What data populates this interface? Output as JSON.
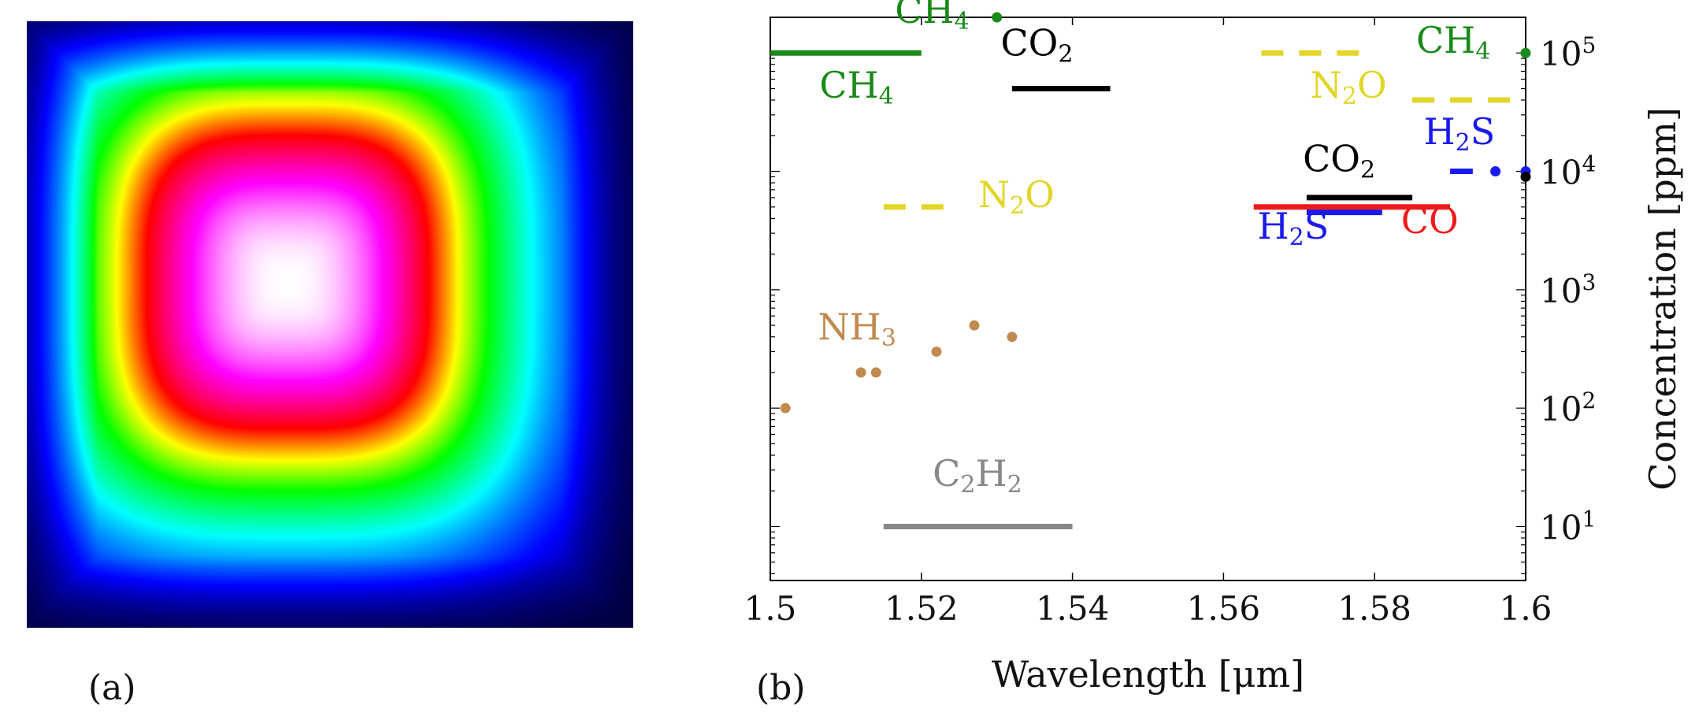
{
  "panel_a": {
    "caption": "(a)",
    "colormap": [
      "#000033",
      "#0000ff",
      "#00ffff",
      "#00ff00",
      "#ffff00",
      "#ff0000",
      "#ff00ff",
      "#ffffff"
    ]
  },
  "panel_b": {
    "caption": "(b)"
  },
  "chart_data": [
    {
      "type": "heatmap",
      "title": "",
      "shape": "square beam profile, peak intensity upper-left of center",
      "colorscale": [
        "black",
        "blue",
        "cyan",
        "green",
        "yellow",
        "red",
        "magenta",
        "white"
      ]
    },
    {
      "type": "scatter",
      "title": "",
      "xlabel": "Wavelength [μm]",
      "ylabel": "Concentration [ppm]",
      "xlim": [
        1.5,
        1.6
      ],
      "ylim": [
        3.5,
        200000
      ],
      "yscale": "log",
      "xticks": [
        1.5,
        1.52,
        1.54,
        1.56,
        1.58,
        1.6
      ],
      "xtick_labels": [
        "1.5",
        "1.52",
        "1.54",
        "1.56",
        "1.58",
        "1.6"
      ],
      "yticks": [
        10,
        100,
        1000,
        10000,
        100000
      ],
      "ytick_bases": [
        "10",
        "10",
        "10",
        "10",
        "10"
      ],
      "ytick_exps": [
        "1",
        "2",
        "3",
        "4",
        "5"
      ],
      "colors": {
        "CH4": "#1a8a1a",
        "CO2": "#000000",
        "N2O": "#e2d62a",
        "H2S": "#1a1aee",
        "CO": "#ee1a1a",
        "NH3": "#c08a50",
        "C2H2": "#888888"
      },
      "segments": [
        {
          "gas": "CH4",
          "x1": 1.5,
          "x2": 1.52,
          "y": 100000,
          "style": "solid"
        },
        {
          "gas": "CO2",
          "x1": 1.532,
          "x2": 1.545,
          "y": 50000,
          "style": "solid"
        },
        {
          "gas": "N2O",
          "x1": 1.515,
          "x2": 1.525,
          "y": 5000,
          "style": "dashed"
        },
        {
          "gas": "N2O",
          "x1": 1.565,
          "x2": 1.578,
          "y": 100000,
          "style": "dashed"
        },
        {
          "gas": "N2O",
          "x1": 1.585,
          "x2": 1.598,
          "y": 40000,
          "style": "dashed"
        },
        {
          "gas": "H2S",
          "x1": 1.59,
          "x2": 1.593,
          "y": 10000,
          "style": "solid"
        },
        {
          "gas": "CO2",
          "x1": 1.571,
          "x2": 1.585,
          "y": 6000,
          "style": "solid"
        },
        {
          "gas": "CO",
          "x1": 1.564,
          "x2": 1.59,
          "y": 5000,
          "style": "solid"
        },
        {
          "gas": "H2S",
          "x1": 1.571,
          "x2": 1.581,
          "y": 4500,
          "style": "solid"
        },
        {
          "gas": "C2H2",
          "x1": 1.515,
          "x2": 1.54,
          "y": 10,
          "style": "solid"
        }
      ],
      "points": [
        {
          "gas": "CH4",
          "x": 1.53,
          "y": 200000
        },
        {
          "gas": "CH4",
          "x": 1.6,
          "y": 100000
        },
        {
          "gas": "H2S",
          "x": 1.596,
          "y": 10000
        },
        {
          "gas": "H2S",
          "x": 1.6,
          "y": 10000
        },
        {
          "gas": "CO2",
          "x": 1.6,
          "y": 9000
        },
        {
          "gas": "NH3",
          "x": 1.502,
          "y": 100
        },
        {
          "gas": "NH3",
          "x": 1.512,
          "y": 200
        },
        {
          "gas": "NH3",
          "x": 1.514,
          "y": 200
        },
        {
          "gas": "NH3",
          "x": 1.522,
          "y": 300
        },
        {
          "gas": "NH3",
          "x": 1.527,
          "y": 500
        },
        {
          "gas": "NH3",
          "x": 1.532,
          "y": 400
        }
      ],
      "annotations": [
        {
          "name": "ch4-top",
          "gas": "CH4",
          "base": "CH",
          "sub": "4",
          "x": 1.5165,
          "y": 180000
        },
        {
          "name": "ch4-left",
          "gas": "CH4",
          "base": "CH",
          "sub": "4",
          "x": 1.5065,
          "y": 42000
        },
        {
          "name": "co2-top",
          "gas": "CO2",
          "base": "CO",
          "sub": "2",
          "x": 1.5305,
          "y": 95000
        },
        {
          "name": "n2o-left",
          "gas": "N2O",
          "base": "N",
          "sub": "2",
          "tail": "O",
          "x": 1.5275,
          "y": 5000
        },
        {
          "name": "n2o-right",
          "gas": "N2O",
          "base": "N",
          "sub": "2",
          "tail": "O",
          "x": 1.5715,
          "y": 42000
        },
        {
          "name": "ch4-right",
          "gas": "CH4",
          "base": "CH",
          "sub": "4",
          "x": 1.5855,
          "y": 100000
        },
        {
          "name": "h2s-right",
          "gas": "H2S",
          "base": "H",
          "sub": "2",
          "tail": "S",
          "x": 1.5865,
          "y": 17000
        },
        {
          "name": "co2-right",
          "gas": "CO2",
          "base": "CO",
          "sub": "2",
          "x": 1.5705,
          "y": 10000
        },
        {
          "name": "h2s-lower",
          "gas": "H2S",
          "base": "H",
          "sub": "2",
          "tail": "S",
          "x": 1.5645,
          "y": 2700
        },
        {
          "name": "co-label",
          "gas": "CO",
          "base": "CO",
          "x": 1.5835,
          "y": 3000
        },
        {
          "name": "nh3-label",
          "gas": "NH3",
          "base": "NH",
          "sub": "3",
          "x": 1.5063,
          "y": 380
        },
        {
          "name": "c2h2-label",
          "gas": "C2H2",
          "base": "C",
          "sub": "2",
          "tail": "H",
          "sub2": "2",
          "x": 1.5215,
          "y": 22
        }
      ]
    }
  ]
}
